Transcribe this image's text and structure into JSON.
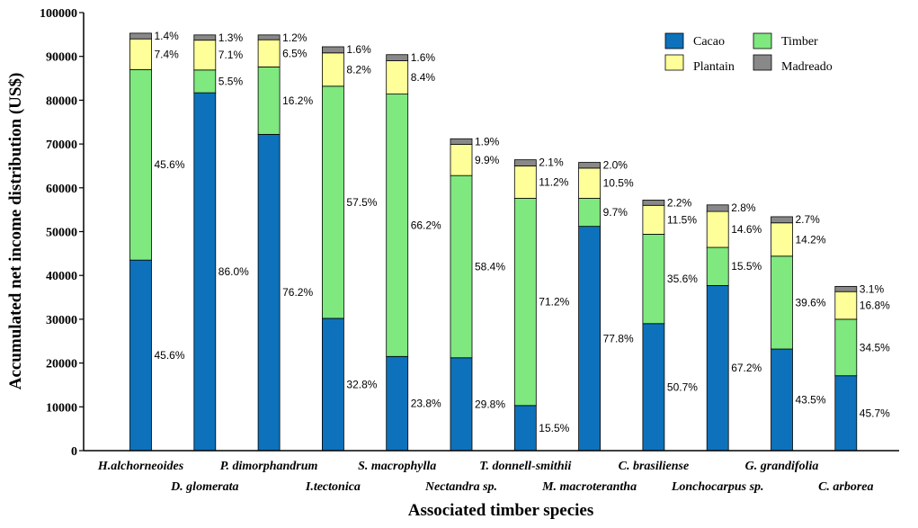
{
  "chart_data": {
    "type": "bar",
    "stacked": true,
    "title": "",
    "xlabel": "Associated timber species",
    "ylabel": "Accumulated net income distribution (US$)",
    "ylim": [
      0,
      100000
    ],
    "yticks": [
      0,
      10000,
      20000,
      30000,
      40000,
      50000,
      60000,
      70000,
      80000,
      90000,
      100000
    ],
    "legend_position": "top-right",
    "categories": [
      "H.alchorneoides",
      "D. glomerata",
      "P. dimorphandrum",
      "I.tectonica",
      "S. macrophylla",
      "Nectandra sp.",
      "T. donnell-smithii",
      "M. macroterantha",
      "C. brasiliense",
      "Lonchocarpus sp.",
      "G. grandifolia",
      "C. arborea"
    ],
    "series": [
      {
        "name": "Cacao",
        "color": "#0d72bb",
        "values": [
          43500,
          81700,
          72200,
          30200,
          21500,
          21200,
          10300,
          51200,
          29000,
          37700,
          23200,
          17100
        ],
        "labels": [
          "45.6%",
          "86.0%",
          "76.2%",
          "32.8%",
          "23.8%",
          "29.8%",
          "15.5%",
          "77.8%",
          "50.7%",
          "67.2%",
          "43.5%",
          "45.7%"
        ]
      },
      {
        "name": "Timber",
        "color": "#7fe87f",
        "values": [
          43500,
          5200,
          15400,
          53000,
          59900,
          41600,
          47300,
          6400,
          20400,
          8700,
          21200,
          12900
        ],
        "labels": [
          "45.6%",
          "5.5%",
          "16.2%",
          "57.5%",
          "66.2%",
          "58.4%",
          "71.2%",
          "9.7%",
          "35.6%",
          "15.5%",
          "39.6%",
          "34.5%"
        ]
      },
      {
        "name": "Plantain",
        "color": "#ffff99",
        "values": [
          7000,
          6800,
          6200,
          7600,
          7600,
          7100,
          7400,
          6900,
          6600,
          8200,
          7600,
          6300
        ],
        "labels": [
          "7.4%",
          "7.1%",
          "6.5%",
          "8.2%",
          "8.4%",
          "9.9%",
          "11.2%",
          "10.5%",
          "11.5%",
          "14.6%",
          "14.2%",
          "16.8%"
        ]
      },
      {
        "name": "Madreado",
        "color": "#888888",
        "values": [
          1300,
          1200,
          1100,
          1400,
          1400,
          1300,
          1400,
          1300,
          1200,
          1500,
          1400,
          1200
        ],
        "labels": [
          "1.4%",
          "1.3%",
          "1.2%",
          "1.6%",
          "1.6%",
          "1.9%",
          "2.1%",
          "2.0%",
          "2.2%",
          "2.8%",
          "2.7%",
          "3.1%"
        ]
      }
    ]
  }
}
